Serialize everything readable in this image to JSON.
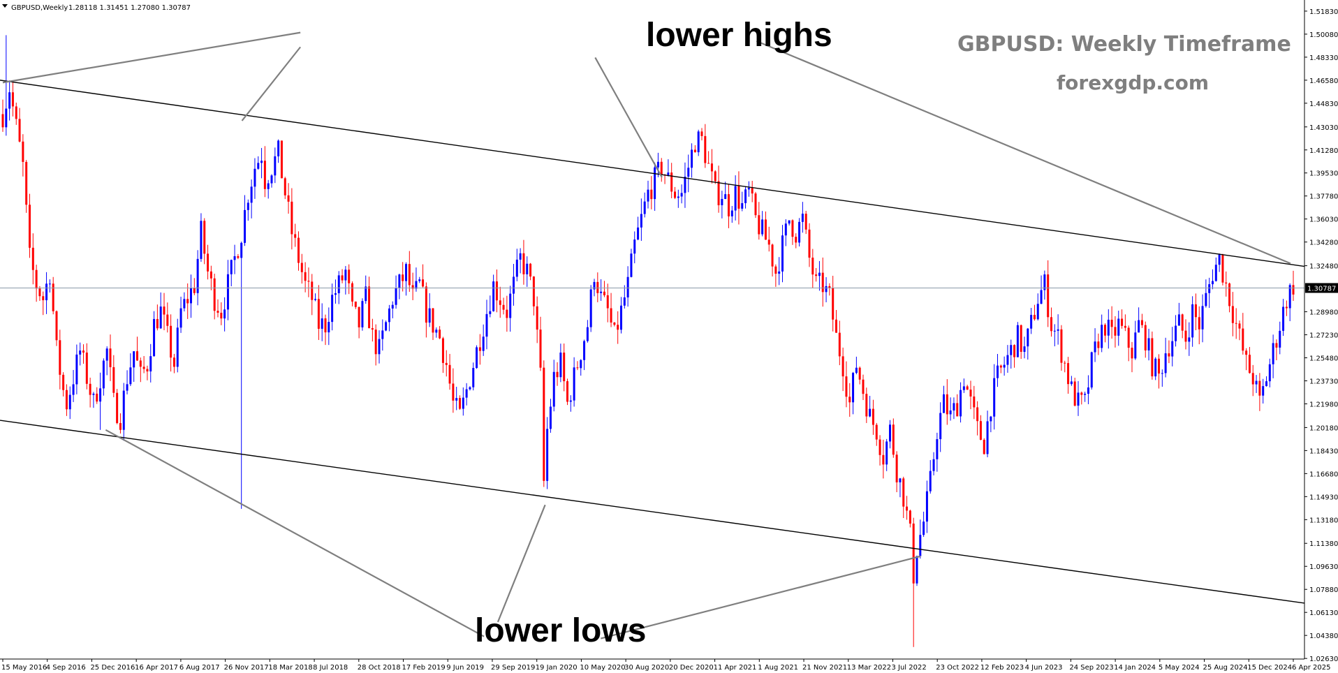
{
  "header": {
    "symbol": "GBPUSD,Weekly",
    "ohlc": "1.28118 1.31451 1.27080 1.30787"
  },
  "annotations": {
    "top_label": "lower highs",
    "bottom_label": "lower lows",
    "title_line1": "GBPUSD: Weekly Timeframe",
    "title_line2": "forexgdp.com"
  },
  "colors": {
    "bull": "#0000ff",
    "bear": "#ff0000",
    "trendline": "#000000",
    "arrow": "#7f7f7f",
    "current_price_line": "#8a9aa8",
    "price_label_bg": "#000000"
  },
  "chart_data": {
    "type": "candlestick",
    "y_range": [
      1.02585,
      1.52675
    ],
    "y_ticks": [
      "1.51830",
      "1.50080",
      "1.48330",
      "1.46580",
      "1.44830",
      "1.43030",
      "1.41280",
      "1.39530",
      "1.37780",
      "1.36030",
      "1.34280",
      "1.32480",
      "1.30787",
      "1.28980",
      "1.27230",
      "1.25480",
      "1.23730",
      "1.21980",
      "1.20180",
      "1.18430",
      "1.16680",
      "1.14930",
      "1.13180",
      "1.11380",
      "1.09630",
      "1.07880",
      "1.06130",
      "1.04380",
      "1.02630"
    ],
    "x_labels": [
      "15 May 2016",
      "4 Sep 2016",
      "25 Dec 2016",
      "16 Apr 2017",
      "6 Aug 2017",
      "26 Nov 2017",
      "18 Mar 2018",
      "8 Jul 2018",
      "28 Oct 2018",
      "17 Feb 2019",
      "9 Jun 2019",
      "29 Sep 2019",
      "19 Jan 2020",
      "10 May 2020",
      "30 Aug 2020",
      "20 Dec 2020",
      "11 Apr 2021",
      "1 Aug 2021",
      "21 Nov 2021",
      "13 Mar 2022",
      "3 Jul 2022",
      "23 Oct 2022",
      "12 Feb 2023",
      "4 Jun 2023",
      "24 Sep 2023",
      "14 Jan 2024",
      "5 May 2024",
      "25 Aug 2024",
      "15 Dec 2024",
      "6 Apr 2025"
    ],
    "current_price": "1.30787",
    "anchors": [
      [
        0,
        1.44
      ],
      [
        2,
        1.46
      ],
      [
        4,
        1.43
      ],
      [
        6,
        1.4
      ],
      [
        8,
        1.33
      ],
      [
        10,
        1.31
      ],
      [
        12,
        1.3
      ],
      [
        14,
        1.32
      ],
      [
        16,
        1.26
      ],
      [
        18,
        1.23
      ],
      [
        19,
        1.22
      ],
      [
        21,
        1.24
      ],
      [
        23,
        1.26
      ],
      [
        25,
        1.24
      ],
      [
        27,
        1.22
      ],
      [
        29,
        1.24
      ],
      [
        31,
        1.26
      ],
      [
        33,
        1.22
      ],
      [
        35,
        1.21
      ],
      [
        37,
        1.24
      ],
      [
        39,
        1.26
      ],
      [
        41,
        1.24
      ],
      [
        43,
        1.25
      ],
      [
        45,
        1.28
      ],
      [
        47,
        1.29
      ],
      [
        49,
        1.27
      ],
      [
        51,
        1.25
      ],
      [
        53,
        1.29
      ],
      [
        55,
        1.3
      ],
      [
        57,
        1.31
      ],
      [
        59,
        1.35
      ],
      [
        61,
        1.32
      ],
      [
        63,
        1.3
      ],
      [
        65,
        1.29
      ],
      [
        67,
        1.31
      ],
      [
        69,
        1.33
      ],
      [
        71,
        1.35
      ],
      [
        73,
        1.38
      ],
      [
        75,
        1.4
      ],
      [
        77,
        1.41
      ],
      [
        78,
        1.39
      ],
      [
        80,
        1.4
      ],
      [
        82,
        1.41
      ],
      [
        84,
        1.38
      ],
      [
        86,
        1.35
      ],
      [
        88,
        1.33
      ],
      [
        90,
        1.31
      ],
      [
        92,
        1.3
      ],
      [
        94,
        1.28
      ],
      [
        96,
        1.28
      ],
      [
        98,
        1.3
      ],
      [
        100,
        1.31
      ],
      [
        102,
        1.32
      ],
      [
        104,
        1.29
      ],
      [
        106,
        1.28
      ],
      [
        108,
        1.3
      ],
      [
        110,
        1.27
      ],
      [
        112,
        1.26
      ],
      [
        114,
        1.28
      ],
      [
        116,
        1.3
      ],
      [
        118,
        1.31
      ],
      [
        120,
        1.32
      ],
      [
        122,
        1.3
      ],
      [
        124,
        1.31
      ],
      [
        126,
        1.29
      ],
      [
        128,
        1.28
      ],
      [
        130,
        1.27
      ],
      [
        132,
        1.25
      ],
      [
        134,
        1.22
      ],
      [
        136,
        1.21
      ],
      [
        138,
        1.23
      ],
      [
        140,
        1.25
      ],
      [
        142,
        1.27
      ],
      [
        144,
        1.29
      ],
      [
        146,
        1.31
      ],
      [
        148,
        1.3
      ],
      [
        150,
        1.29
      ],
      [
        152,
        1.31
      ],
      [
        154,
        1.33
      ],
      [
        156,
        1.32
      ],
      [
        158,
        1.3
      ],
      [
        160,
        1.24
      ],
      [
        161,
        1.16
      ],
      [
        162,
        1.2
      ],
      [
        164,
        1.24
      ],
      [
        166,
        1.25
      ],
      [
        168,
        1.22
      ],
      [
        170,
        1.24
      ],
      [
        172,
        1.26
      ],
      [
        174,
        1.28
      ],
      [
        176,
        1.32
      ],
      [
        178,
        1.3
      ],
      [
        180,
        1.29
      ],
      [
        182,
        1.27
      ],
      [
        184,
        1.29
      ],
      [
        186,
        1.31
      ],
      [
        188,
        1.34
      ],
      [
        190,
        1.36
      ],
      [
        192,
        1.38
      ],
      [
        194,
        1.39
      ],
      [
        196,
        1.4
      ],
      [
        198,
        1.39
      ],
      [
        200,
        1.38
      ],
      [
        202,
        1.38
      ],
      [
        204,
        1.4
      ],
      [
        206,
        1.42
      ],
      [
        208,
        1.42
      ],
      [
        210,
        1.4
      ],
      [
        212,
        1.38
      ],
      [
        214,
        1.38
      ],
      [
        216,
        1.37
      ],
      [
        218,
        1.38
      ],
      [
        220,
        1.37
      ],
      [
        222,
        1.38
      ],
      [
        224,
        1.36
      ],
      [
        226,
        1.35
      ],
      [
        228,
        1.34
      ],
      [
        230,
        1.32
      ],
      [
        232,
        1.34
      ],
      [
        234,
        1.36
      ],
      [
        236,
        1.35
      ],
      [
        238,
        1.36
      ],
      [
        240,
        1.33
      ],
      [
        242,
        1.31
      ],
      [
        244,
        1.31
      ],
      [
        246,
        1.3
      ],
      [
        248,
        1.27
      ],
      [
        250,
        1.25
      ],
      [
        252,
        1.22
      ],
      [
        254,
        1.25
      ],
      [
        256,
        1.23
      ],
      [
        258,
        1.21
      ],
      [
        260,
        1.2
      ],
      [
        262,
        1.18
      ],
      [
        264,
        1.2
      ],
      [
        266,
        1.17
      ],
      [
        268,
        1.15
      ],
      [
        270,
        1.12
      ],
      [
        271,
        1.09
      ],
      [
        272,
        1.11
      ],
      [
        274,
        1.13
      ],
      [
        276,
        1.16
      ],
      [
        278,
        1.2
      ],
      [
        280,
        1.22
      ],
      [
        282,
        1.21
      ],
      [
        284,
        1.22
      ],
      [
        286,
        1.24
      ],
      [
        288,
        1.22
      ],
      [
        290,
        1.2
      ],
      [
        292,
        1.19
      ],
      [
        294,
        1.22
      ],
      [
        296,
        1.24
      ],
      [
        298,
        1.25
      ],
      [
        300,
        1.26
      ],
      [
        302,
        1.27
      ],
      [
        304,
        1.26
      ],
      [
        306,
        1.28
      ],
      [
        308,
        1.3
      ],
      [
        310,
        1.31
      ],
      [
        312,
        1.28
      ],
      [
        314,
        1.27
      ],
      [
        316,
        1.25
      ],
      [
        318,
        1.23
      ],
      [
        320,
        1.22
      ],
      [
        322,
        1.22
      ],
      [
        324,
        1.25
      ],
      [
        326,
        1.27
      ],
      [
        328,
        1.28
      ],
      [
        330,
        1.27
      ],
      [
        332,
        1.28
      ],
      [
        334,
        1.27
      ],
      [
        336,
        1.26
      ],
      [
        338,
        1.28
      ],
      [
        340,
        1.27
      ],
      [
        342,
        1.25
      ],
      [
        344,
        1.24
      ],
      [
        346,
        1.26
      ],
      [
        348,
        1.27
      ],
      [
        350,
        1.28
      ],
      [
        352,
        1.27
      ],
      [
        354,
        1.29
      ],
      [
        356,
        1.28
      ],
      [
        358,
        1.3
      ],
      [
        360,
        1.32
      ],
      [
        362,
        1.33
      ],
      [
        364,
        1.31
      ],
      [
        366,
        1.29
      ],
      [
        368,
        1.27
      ],
      [
        370,
        1.25
      ],
      [
        372,
        1.24
      ],
      [
        374,
        1.22
      ],
      [
        376,
        1.24
      ],
      [
        378,
        1.26
      ],
      [
        380,
        1.28
      ],
      [
        382,
        1.3
      ],
      [
        384,
        1.31
      ]
    ],
    "extremes": [
      [
        1,
        1.5
      ],
      [
        71,
        1.14
      ],
      [
        271,
        1.035
      ],
      [
        29,
        1.2
      ]
    ],
    "trendlines": [
      {
        "role": "upper-channel",
        "start": [
          "15 May 2016",
          1.4655
        ],
        "end": [
          "6 Apr 2025",
          1.3255
        ]
      },
      {
        "role": "lower-channel",
        "start": [
          "15 May 2016",
          1.207
        ],
        "end": [
          "6 Apr 2025",
          1.0695
        ]
      }
    ],
    "arrows": [
      {
        "label": "lower highs",
        "start": [
          "3 Jun 2018",
          1.502
        ],
        "end": [
          "15 May 2016",
          1.464
        ]
      },
      {
        "label": "lower highs",
        "start": [
          "3 Jun 2018",
          1.491
        ],
        "end": [
          "7 Jan 2018",
          1.435
        ]
      },
      {
        "label": "lower highs",
        "start": [
          "14 Jun 2020",
          1.483
        ],
        "end": [
          "29 Nov 2020",
          1.392
        ]
      },
      {
        "label": "lower highs",
        "start": [
          "25 Jul 2021",
          1.4955
        ],
        "end": [
          "30 Mar 2025",
          1.3265
        ]
      },
      {
        "label": "lower lows",
        "start": [
          "29 Jan 2017",
          1.2
        ],
        "end": [
          "8 Sep 2019",
          1.043
        ]
      },
      {
        "label": "lower lows",
        "start": [
          "13 Oct 2019",
          1.054
        ],
        "end": [
          "9 Feb 2020",
          1.143
        ]
      },
      {
        "label": "lower lows",
        "start": [
          "28 Jun 2020",
          1.0415
        ],
        "end": [
          "11 Sep 2022",
          1.104
        ]
      }
    ]
  }
}
